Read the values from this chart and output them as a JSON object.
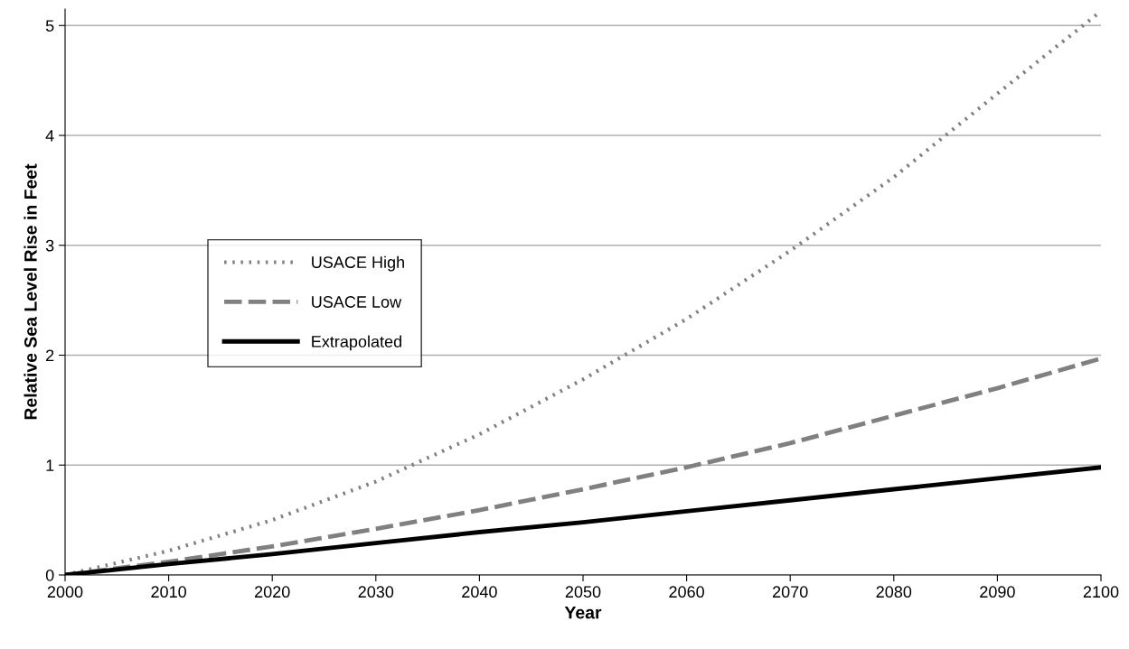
{
  "chart_data": {
    "type": "line",
    "xlabel": "Year",
    "ylabel": "Relative Sea Level Rise in Feet",
    "x": [
      2000,
      2010,
      2020,
      2030,
      2040,
      2050,
      2060,
      2070,
      2080,
      2090,
      2100
    ],
    "series": [
      {
        "name": "USACE High",
        "color": "#808080",
        "line_style": "dotted",
        "values": [
          0,
          0.22,
          0.5,
          0.85,
          1.28,
          1.78,
          2.33,
          2.95,
          3.62,
          4.38,
          5.13
        ]
      },
      {
        "name": "USACE Low",
        "color": "#808080",
        "line_style": "dashed",
        "values": [
          0,
          0.12,
          0.26,
          0.42,
          0.59,
          0.78,
          0.98,
          1.2,
          1.45,
          1.7,
          1.97
        ]
      },
      {
        "name": "Extrapolated",
        "color": "#000000",
        "line_style": "solid",
        "values": [
          0,
          0.1,
          0.19,
          0.29,
          0.39,
          0.48,
          0.58,
          0.68,
          0.78,
          0.88,
          0.98
        ]
      }
    ],
    "xlim": [
      2000,
      2100
    ],
    "xticks": [
      2000,
      2010,
      2020,
      2030,
      2040,
      2050,
      2060,
      2070,
      2080,
      2090,
      2100
    ],
    "ylim": [
      0,
      5.15
    ],
    "yticks": [
      0,
      1,
      2,
      3,
      4,
      5
    ],
    "grid": "y",
    "legend": "center left",
    "marker": "none"
  }
}
